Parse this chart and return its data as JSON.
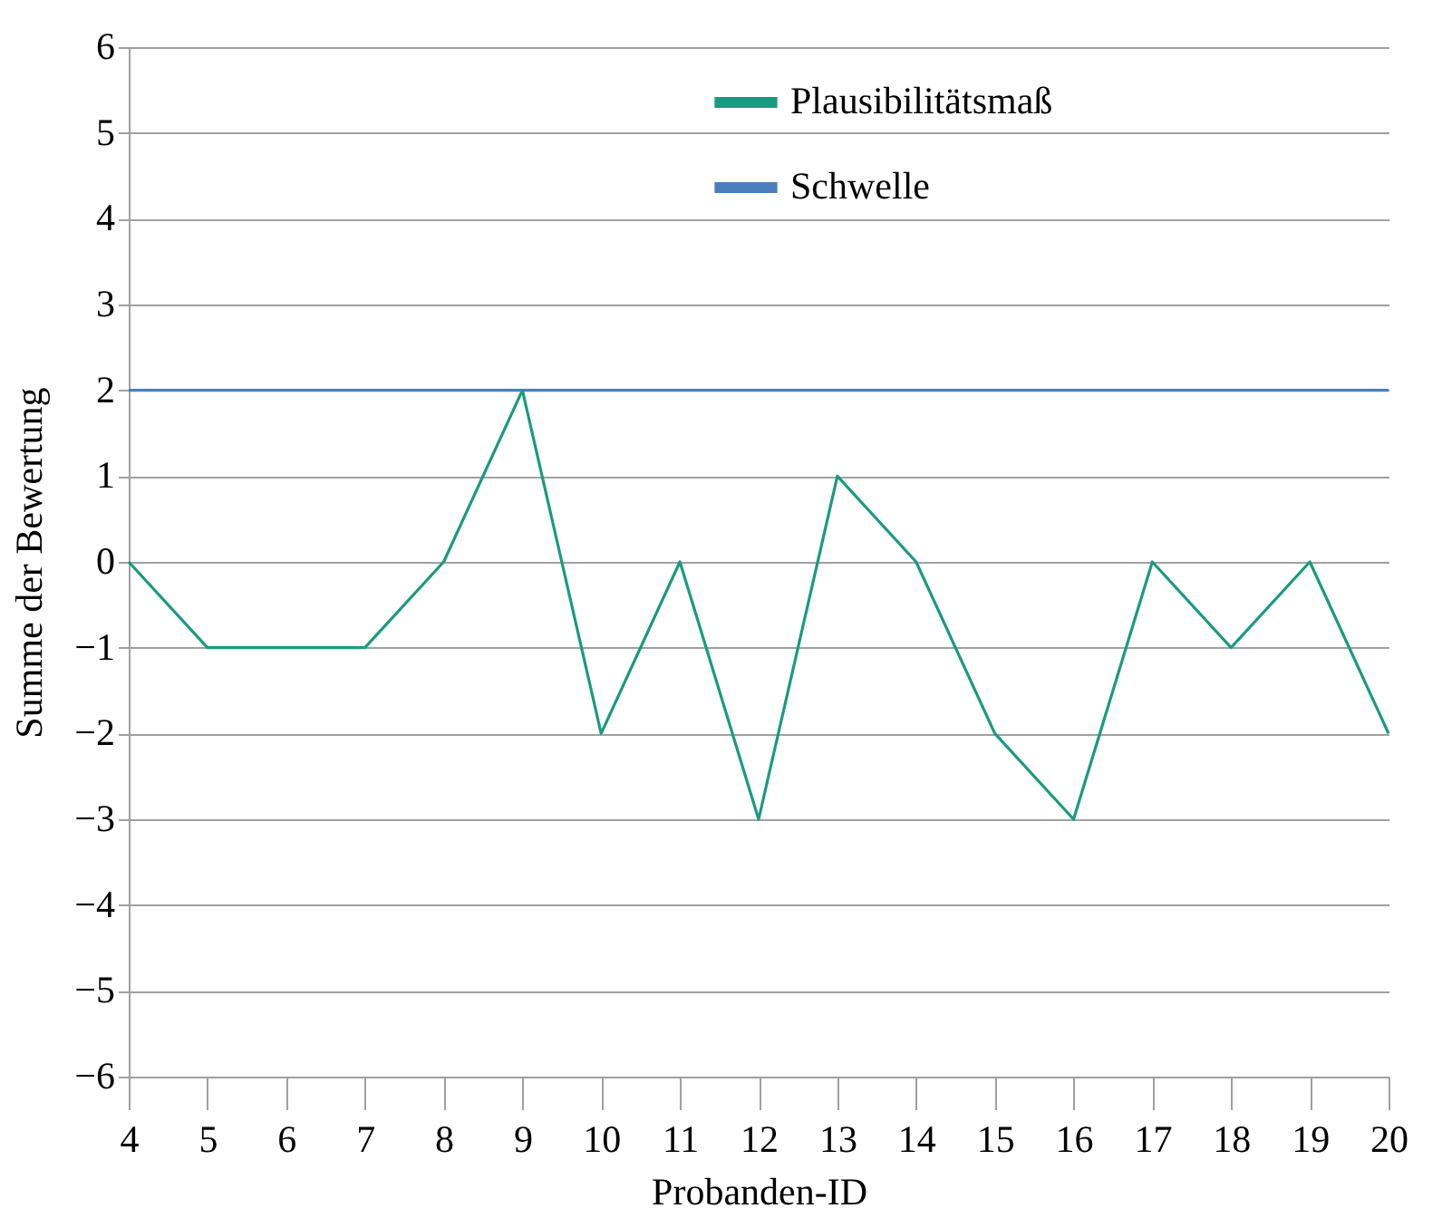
{
  "chart_data": {
    "type": "line",
    "xlabel": "Probanden-ID",
    "ylabel": "Summe der Bewertung",
    "categories": [
      "4",
      "5",
      "6",
      "7",
      "8",
      "9",
      "10",
      "11",
      "12",
      "13",
      "14",
      "15",
      "16",
      "17",
      "18",
      "19",
      "20"
    ],
    "series": [
      {
        "name": "Plausibilitätsmaß",
        "color": "#1a9a80",
        "values": [
          0,
          -1,
          -1,
          -1,
          0,
          2,
          -2,
          0,
          -3,
          1,
          0,
          -2,
          -3,
          0,
          -1,
          0,
          -2
        ]
      },
      {
        "name": "Schwelle",
        "color": "#4a7ebb",
        "values": [
          2,
          2,
          2,
          2,
          2,
          2,
          2,
          2,
          2,
          2,
          2,
          2,
          2,
          2,
          2,
          2,
          2
        ]
      }
    ],
    "ylim": [
      -6,
      6
    ],
    "yticks": [
      -6,
      -5,
      -4,
      -3,
      -2,
      -1,
      0,
      1,
      2,
      3,
      4,
      5,
      6
    ],
    "grid": "y",
    "legend": "top right",
    "marker": "none",
    "line_style": "solid"
  }
}
